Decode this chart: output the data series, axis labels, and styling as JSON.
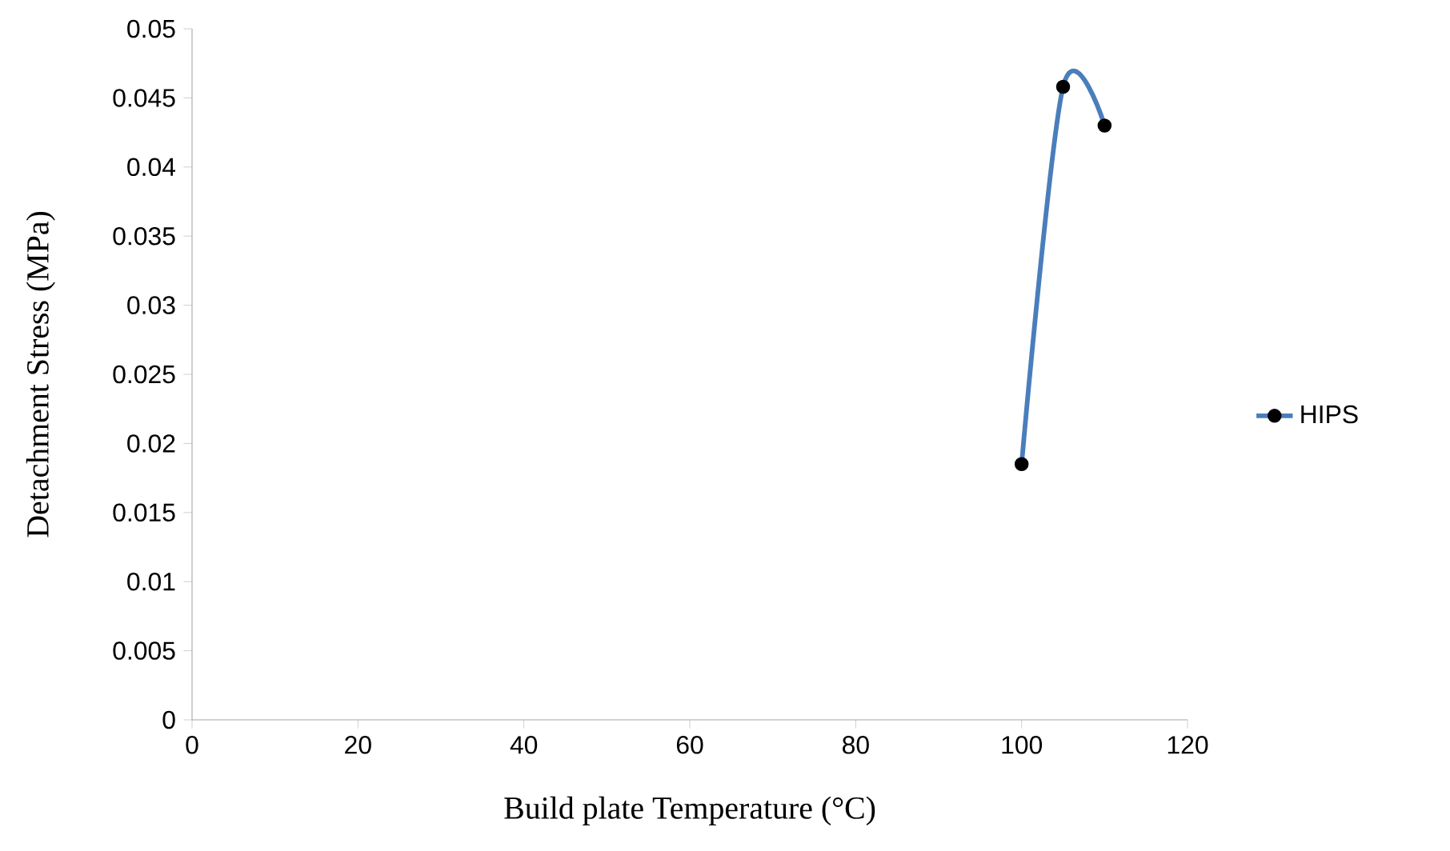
{
  "chart_data": {
    "type": "line",
    "xlabel": "Build plate Temperature (°C)",
    "ylabel": "Detachment Stress (MPa)",
    "x": [
      100,
      105,
      110
    ],
    "series": [
      {
        "name": "HIPS",
        "color": "#4a7ebb",
        "values": [
          0.0185,
          0.0458,
          0.043
        ]
      }
    ],
    "xlim": [
      0,
      120
    ],
    "xticks": [
      0,
      20,
      40,
      60,
      80,
      100,
      120
    ],
    "ylim": [
      0,
      0.05
    ],
    "yticks": [
      0,
      0.005,
      0.01,
      0.015,
      0.02,
      0.025,
      0.03,
      0.035,
      0.04,
      0.045,
      0.05
    ],
    "grid": false,
    "legend": "right",
    "marker": "circle",
    "line_style": "solid"
  }
}
